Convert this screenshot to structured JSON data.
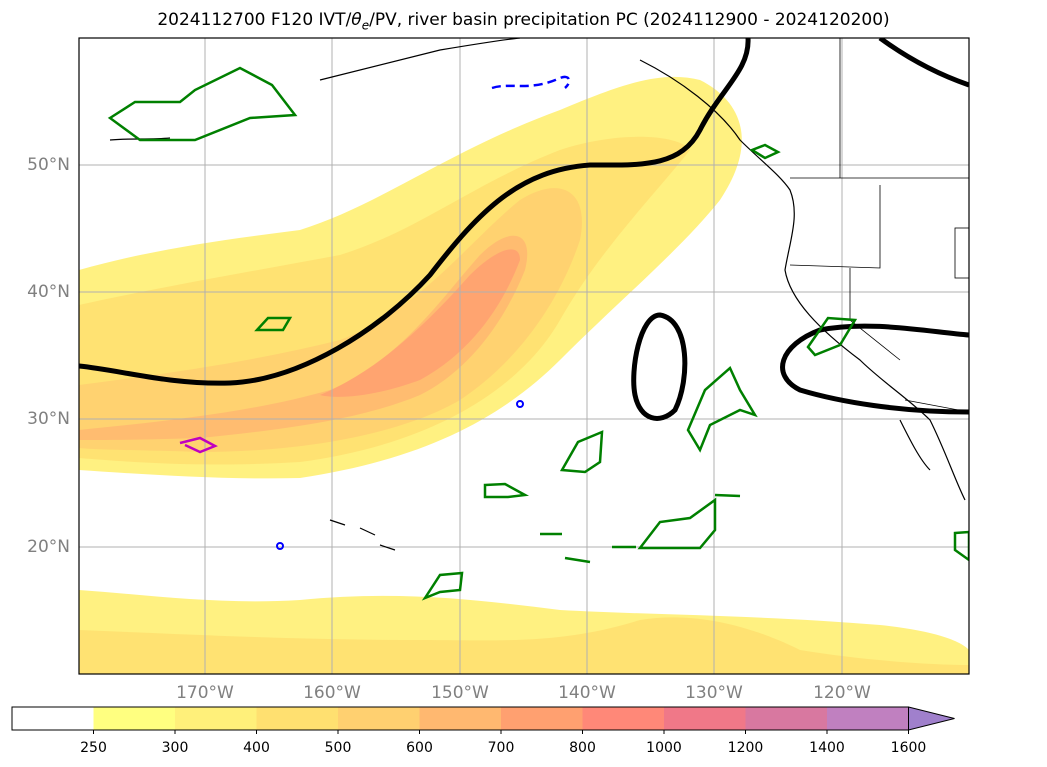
{
  "title": "2024112700 F120 IVT/θe/PV, river basin precipitation PC (2024112900 - 2024120200)",
  "title_parts": {
    "prefix": "2024112700 F120 IVT/",
    "theta": "θ",
    "subscript": "e",
    "suffix": "/PV, river basin precipitation PC (2024112900 - 2024120200)"
  },
  "lat_labels": [
    "50°N",
    "40°N",
    "30°N",
    "20°N"
  ],
  "lon_labels": [
    "170°W",
    "160°W",
    "150°W",
    "140°W",
    "130°W",
    "120°W"
  ],
  "colorbar": {
    "ticks": [
      "250",
      "300",
      "400",
      "500",
      "600",
      "700",
      "800",
      "1000",
      "1200",
      "1400",
      "1600"
    ],
    "colors": [
      "#ffffff",
      "#ffff80",
      "#fff07a",
      "#ffe070",
      "#ffd070",
      "#ffb870",
      "#ffa070",
      "#ff8878",
      "#f07888",
      "#d878a0",
      "#c080c0",
      "#a080cc"
    ],
    "extend": "max"
  },
  "colors": {
    "ivt_low": "#fff07a",
    "ivt_mid": "#ffd070",
    "ivt_high": "#ffa070",
    "theta_e_contour": "#000000",
    "pv_contour_green": "#008000",
    "pv_contour_blue": "#0000ff",
    "pv_contour_magenta": "#c000c0",
    "gridline": "#b0b0b0"
  },
  "map": {
    "lat_range": [
      10,
      60
    ],
    "lon_range": [
      -180,
      -110
    ],
    "grid": true
  }
}
